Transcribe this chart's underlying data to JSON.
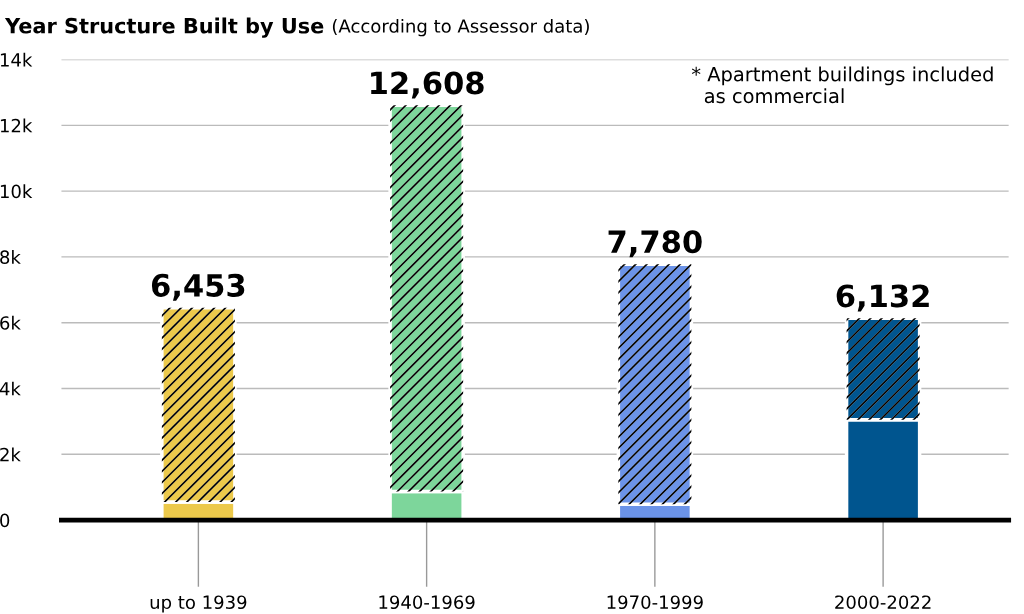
{
  "chart_data": {
    "type": "bar",
    "stacked": true,
    "title": "Year Structure Built by Use",
    "subtitle": "(According to Assessor data)",
    "categories": [
      "up to 1939",
      "1940-1969",
      "1970-1999",
      "2000-2022"
    ],
    "series": [
      {
        "colors": [
          "#ecc94b",
          "#7dd69b",
          "#6b93e8",
          "#00558f"
        ],
        "values": [
          550,
          870,
          480,
          3050
        ]
      },
      {
        "colors": [
          "#ecc94b",
          "#7dd69b",
          "#6b93e8",
          "#00558f"
        ],
        "values": [
          5903,
          11738,
          7300,
          3082
        ]
      }
    ],
    "totals": [
      "6,453",
      "12,608",
      "7,780",
      "6,132"
    ],
    "ylim": [
      0,
      14000
    ],
    "yticks": [
      {
        "value": 0,
        "label": "0"
      },
      {
        "value": 2000,
        "label": "2k"
      },
      {
        "value": 4000,
        "label": "4k"
      },
      {
        "value": 6000,
        "label": "6k"
      },
      {
        "value": 8000,
        "label": "8k"
      },
      {
        "value": 10000,
        "label": "10k"
      },
      {
        "value": 12000,
        "label": "12k"
      },
      {
        "value": 14000,
        "label": "14k"
      }
    ],
    "grid": "y",
    "annotations": [
      "* Apartment buildings included\n  as commercial"
    ]
  }
}
